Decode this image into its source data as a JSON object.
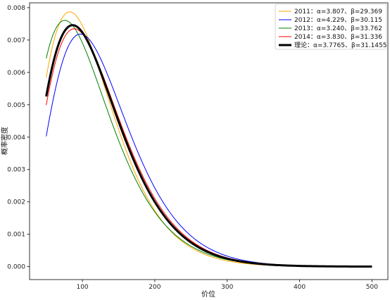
{
  "chart_data": {
    "type": "line",
    "xlabel": "价位",
    "ylabel": "概率密度",
    "xlim": [
      27,
      522
    ],
    "ylim": [
      -0.0004,
      0.00815
    ],
    "xticks": [
      100,
      200,
      300,
      400,
      500
    ],
    "yticks": [
      0.0,
      0.001,
      0.002,
      0.003,
      0.004,
      0.005,
      0.006,
      0.007,
      0.008
    ],
    "grid": false,
    "legend_position": "top-right",
    "x_range": [
      50,
      500
    ],
    "distribution": "gamma",
    "series": [
      {
        "name": "2011：α=3.807、β=29.369",
        "color": "#ffa500",
        "line_width": 1,
        "alpha": 3.807,
        "beta": 29.369
      },
      {
        "name": "2012：α=4.229、β=30.115",
        "color": "#0000ff",
        "line_width": 1,
        "alpha": 4.229,
        "beta": 30.115
      },
      {
        "name": "2013：α=3.240、β=33.762",
        "color": "#008000",
        "line_width": 1,
        "alpha": 3.24,
        "beta": 33.762
      },
      {
        "name": "2014：α=3.830、β=31.336",
        "color": "#ff0000",
        "line_width": 1,
        "alpha": 3.83,
        "beta": 31.336
      },
      {
        "name": "理论：α=3.7765、β=31.1455",
        "color": "#000000",
        "line_width": 3,
        "alpha": 3.7765,
        "beta": 31.1455
      }
    ]
  }
}
